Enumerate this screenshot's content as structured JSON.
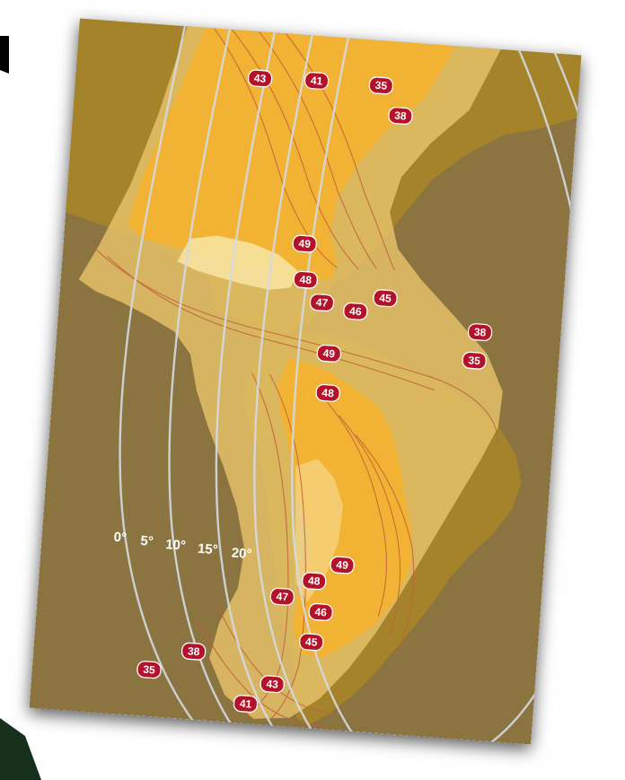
{
  "map": {
    "elevation_angle_labels": [
      "0°",
      "5°",
      "10°",
      "15°",
      "20°"
    ],
    "eirp_contour_labels": [
      {
        "id": "na-43",
        "value": "43"
      },
      {
        "id": "na-41",
        "value": "41"
      },
      {
        "id": "na-35",
        "value": "35"
      },
      {
        "id": "na-38",
        "value": "38"
      },
      {
        "id": "gulf-49",
        "value": "49"
      },
      {
        "id": "carib-48",
        "value": "48"
      },
      {
        "id": "carib-47",
        "value": "47"
      },
      {
        "id": "carib-46",
        "value": "46"
      },
      {
        "id": "carib-45",
        "value": "45"
      },
      {
        "id": "atl-38",
        "value": "38"
      },
      {
        "id": "atl-35",
        "value": "35"
      },
      {
        "id": "sa-n-49",
        "value": "49"
      },
      {
        "id": "sa-n-48",
        "value": "48"
      },
      {
        "id": "sa-s-49",
        "value": "49"
      },
      {
        "id": "sa-s-48",
        "value": "48"
      },
      {
        "id": "sa-s-47",
        "value": "47"
      },
      {
        "id": "sa-s-46",
        "value": "46"
      },
      {
        "id": "sa-s-45",
        "value": "45"
      },
      {
        "id": "pac-38",
        "value": "38"
      },
      {
        "id": "pac-35",
        "value": "35"
      },
      {
        "id": "sa-s-43",
        "value": "43"
      },
      {
        "id": "sa-s-41",
        "value": "41"
      }
    ],
    "colors": {
      "ocean": "#8b7440",
      "land": "#a4832b",
      "beam_outer": "#e8c46a",
      "beam_inner": "#f2b233",
      "beam_core": "#f7e2a0",
      "contour": "#c2613a",
      "elevation_arc": "#d4dbe3",
      "badge": "#b3122a"
    }
  }
}
